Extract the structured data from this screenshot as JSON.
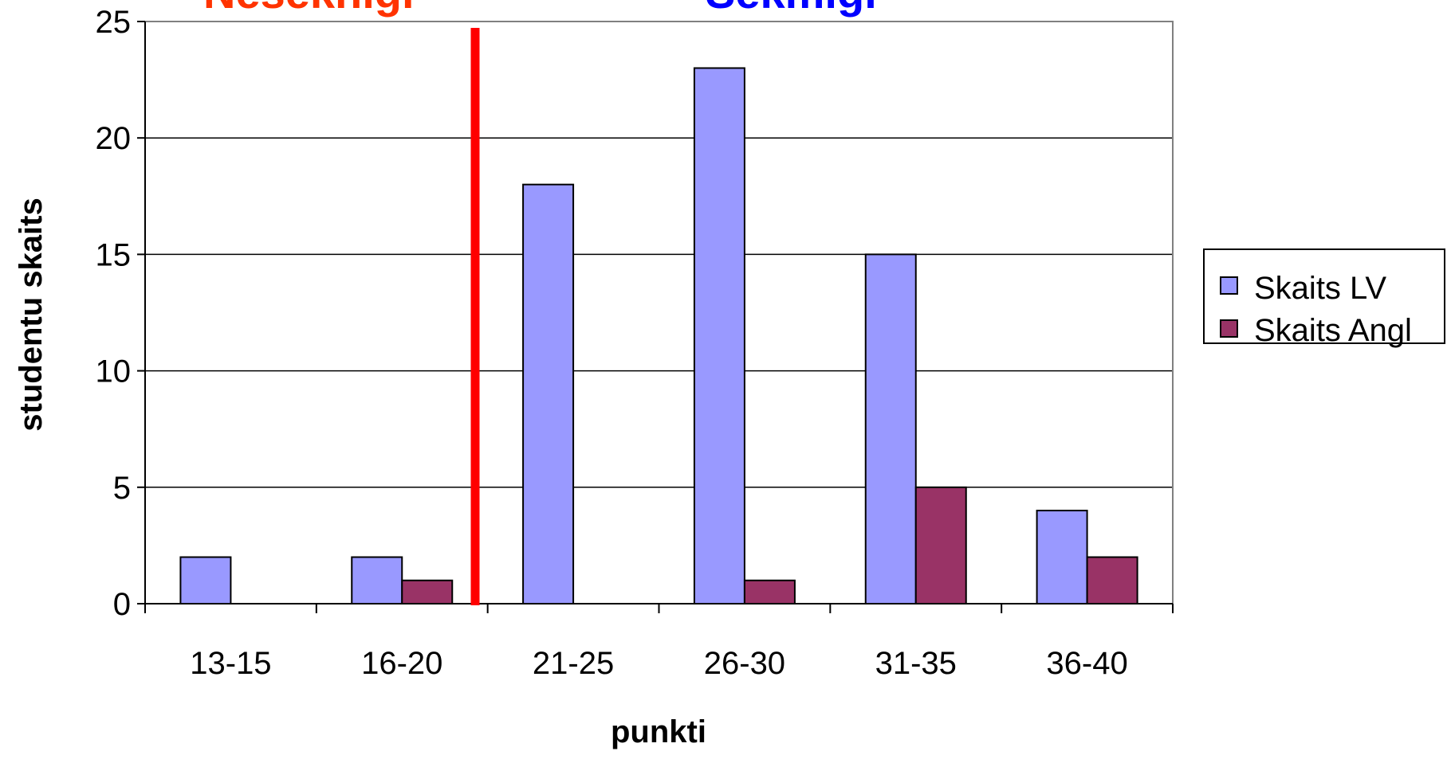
{
  "chart_data": {
    "type": "bar",
    "categories": [
      "13-15",
      "16-20",
      "21-25",
      "26-30",
      "31-35",
      "36-40"
    ],
    "series": [
      {
        "name": "Skaits LV",
        "values": [
          2,
          2,
          18,
          23,
          15,
          4
        ]
      },
      {
        "name": "Skaits Angl",
        "values": [
          0,
          1,
          0,
          1,
          5,
          2
        ]
      }
    ],
    "xlabel": "punkti",
    "ylabel": "studentu skaits",
    "ylim": [
      0,
      25
    ],
    "yticks": [
      0,
      5,
      10,
      15,
      20,
      25
    ],
    "grid": true,
    "legend_position": "right",
    "threshold_line": {
      "after_category": "16-20",
      "color": "#ff0000"
    },
    "top_labels": [
      {
        "text": "Neseknīgi",
        "color": "#ff3300"
      },
      {
        "text": "Sekmīgi",
        "color": "#0000ff"
      }
    ]
  },
  "colors": {
    "series": [
      "#9999ff",
      "#993366"
    ],
    "grid": "#000000",
    "plot_border": "#808080"
  }
}
